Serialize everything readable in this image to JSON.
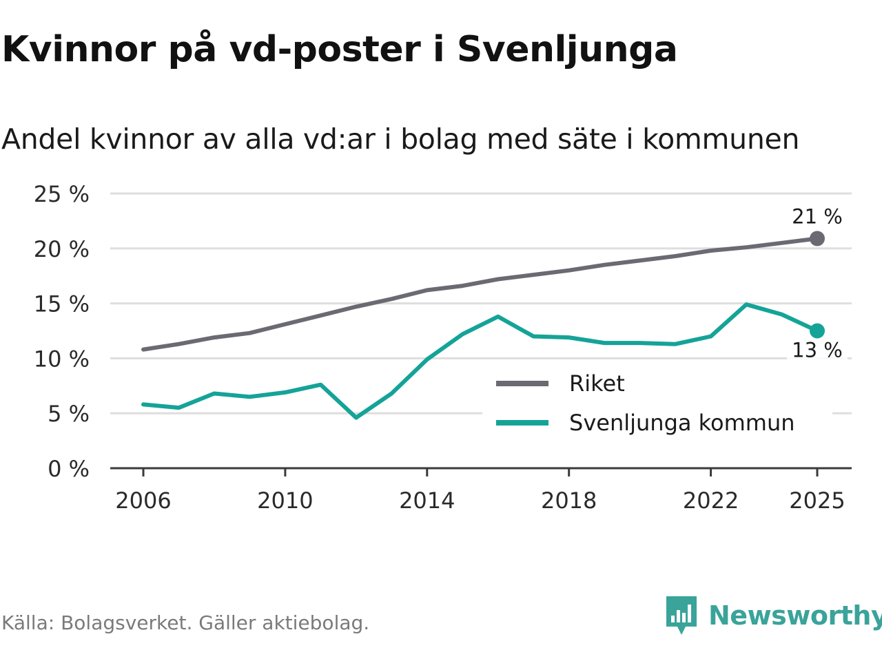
{
  "title": "Kvinnor på vd-poster i Svenljunga",
  "subtitle": "Andel kvinnor av alla vd:ar i bolag med säte i kommunen",
  "source": "Källa: Bolagsverket. Gäller aktiebolag.",
  "brand": {
    "name": "Newsworthy",
    "icon": "newsworthy-logo-icon",
    "color": "#3aa39a"
  },
  "chart_data": {
    "type": "line",
    "x": [
      2006,
      2007,
      2008,
      2009,
      2010,
      2011,
      2012,
      2013,
      2014,
      2015,
      2016,
      2017,
      2018,
      2019,
      2020,
      2021,
      2022,
      2023,
      2024,
      2025
    ],
    "series": [
      {
        "name": "Riket",
        "color": "#6b6a72",
        "values": [
          10.8,
          11.3,
          11.9,
          12.3,
          13.1,
          13.9,
          14.7,
          15.4,
          16.2,
          16.6,
          17.2,
          17.6,
          18.0,
          18.5,
          18.9,
          19.3,
          19.8,
          20.1,
          20.5,
          20.9
        ],
        "end_label": "21 %"
      },
      {
        "name": "Svenljunga kommun",
        "color": "#15a398",
        "values": [
          5.8,
          5.5,
          6.8,
          6.5,
          6.9,
          7.6,
          4.6,
          6.8,
          9.9,
          12.2,
          13.8,
          12.0,
          11.9,
          11.4,
          11.4,
          11.3,
          12.0,
          14.9,
          14.0,
          12.5
        ],
        "end_label": "13 %"
      }
    ],
    "xticks": [
      "2006",
      "2010",
      "2014",
      "2018",
      "2022",
      "2025"
    ],
    "yticks": [
      "0 %",
      "5 %",
      "10 %",
      "15 %",
      "20 %",
      "25 %"
    ],
    "ylim": [
      0,
      25
    ],
    "xlim": [
      2006,
      2025
    ],
    "grid": true,
    "legend_position": "bottom-right",
    "xlabel": "",
    "ylabel": ""
  }
}
